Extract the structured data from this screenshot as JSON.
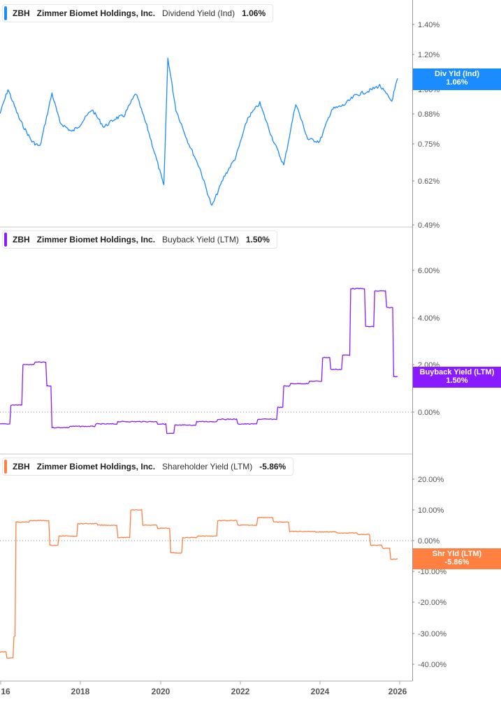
{
  "panels": [
    {
      "ticker": "ZBH",
      "company": "Zimmer Biomet Holdings, Inc.",
      "metric": "Dividend Yield (Ind)",
      "value": "1.06%",
      "color": "#1a8cff",
      "flag_label": "Div Yld (Ind)",
      "flag_value": "1.06%",
      "y_ticks": [
        "1.40%",
        "1.20%",
        "1.00%",
        "0.88%",
        "0.75%",
        "0.62%",
        "0.49%"
      ]
    },
    {
      "ticker": "ZBH",
      "company": "Zimmer Biomet Holdings, Inc.",
      "metric": "Buyback Yield (LTM)",
      "value": "1.50%",
      "color": "#8a1aff",
      "flag_label": "Buyback Yield (LTM)",
      "flag_value": "1.50%",
      "y_ticks": [
        "6.00%",
        "4.00%",
        "2.00%",
        "0.00%"
      ]
    },
    {
      "ticker": "ZBH",
      "company": "Zimmer Biomet Holdings, Inc.",
      "metric": "Shareholder Yield (LTM)",
      "value": "-5.86%",
      "color": "#ff8040",
      "flag_label": "Shr Yld (LTM)",
      "flag_value": "-5.86%",
      "y_ticks": [
        "20.00%",
        "10.00%",
        "0.00%",
        "-10.00%",
        "-20.00%",
        "-30.00%",
        "-40.00%"
      ]
    }
  ],
  "x_axis": {
    "labels": [
      "16",
      "2018",
      "2020",
      "2022",
      "2024",
      "2026"
    ]
  },
  "chart_data": [
    {
      "type": "line",
      "title": "ZBH Zimmer Biomet Holdings, Inc. Dividend Yield (Ind) 1.06%",
      "xlabel": "",
      "ylabel": "Dividend Yield (Ind)",
      "y_scale": "log",
      "ylim": [
        0.49,
        1.5
      ],
      "y_tick_labels": [
        "0.49%",
        "0.62%",
        "0.75%",
        "0.88%",
        "1.00%",
        "1.20%",
        "1.40%"
      ],
      "x": [
        2016.0,
        2016.2,
        2016.5,
        2016.8,
        2017.0,
        2017.3,
        2017.5,
        2017.8,
        2018.0,
        2018.3,
        2018.6,
        2018.9,
        2019.1,
        2019.4,
        2019.7,
        2020.0,
        2020.1,
        2020.2,
        2020.4,
        2020.7,
        2021.0,
        2021.3,
        2021.6,
        2021.9,
        2022.2,
        2022.5,
        2022.8,
        2023.1,
        2023.4,
        2023.7,
        2024.0,
        2024.3,
        2024.6,
        2024.9,
        2025.2,
        2025.5,
        2025.8,
        2025.95
      ],
      "series": [
        {
          "name": "Dividend Yield (Ind)",
          "values": [
            0.88,
            1.0,
            0.85,
            0.76,
            0.74,
            0.98,
            0.84,
            0.8,
            0.83,
            0.9,
            0.82,
            0.86,
            0.87,
            0.98,
            0.81,
            0.65,
            0.6,
            1.18,
            0.9,
            0.76,
            0.66,
            0.54,
            0.63,
            0.7,
            0.86,
            0.93,
            0.78,
            0.67,
            0.93,
            0.77,
            0.76,
            0.9,
            0.92,
            0.97,
            0.99,
            1.02,
            0.94,
            1.06
          ]
        }
      ]
    },
    {
      "type": "line",
      "title": "ZBH Zimmer Biomet Holdings, Inc. Buyback Yield (LTM) 1.50%",
      "xlabel": "",
      "ylabel": "Buyback Yield (LTM)",
      "ylim": [
        -1.0,
        7.0
      ],
      "y_tick_labels": [
        "0.00%",
        "2.00%",
        "4.00%",
        "6.00%"
      ],
      "x": [
        2016.0,
        2016.3,
        2016.6,
        2016.9,
        2017.2,
        2017.3,
        2017.8,
        2018.5,
        2019.0,
        2019.5,
        2020.0,
        2020.2,
        2020.4,
        2021.0,
        2021.5,
        2022.0,
        2022.5,
        2023.0,
        2023.1,
        2023.3,
        2023.8,
        2024.1,
        2024.3,
        2024.6,
        2024.8,
        2025.2,
        2025.4,
        2025.7,
        2025.85,
        2025.95
      ],
      "series": [
        {
          "name": "Buyback Yield (LTM)",
          "values": [
            -0.5,
            0.3,
            2.0,
            2.1,
            1.1,
            -0.65,
            -0.6,
            -0.5,
            -0.4,
            -0.4,
            -0.5,
            -0.9,
            -0.55,
            -0.4,
            -0.3,
            -0.5,
            -0.3,
            0.2,
            1.1,
            1.2,
            1.3,
            2.3,
            1.8,
            2.4,
            5.2,
            3.6,
            5.1,
            4.4,
            1.5,
            1.5
          ]
        }
      ]
    },
    {
      "type": "line",
      "title": "ZBH Zimmer Biomet Holdings, Inc. Shareholder Yield (LTM) -5.86%",
      "xlabel": "",
      "ylabel": "Shareholder Yield (LTM)",
      "ylim": [
        -45.0,
        25.0
      ],
      "y_tick_labels": [
        "-40.00%",
        "-30.00%",
        "-20.00%",
        "-10.00%",
        "0.00%",
        "10.00%",
        "20.00%"
      ],
      "x": [
        2016.0,
        2016.2,
        2016.35,
        2016.4,
        2016.8,
        2017.3,
        2017.5,
        2018.0,
        2018.5,
        2019.0,
        2019.3,
        2019.6,
        2020.0,
        2020.3,
        2020.6,
        2021.0,
        2021.5,
        2022.0,
        2022.5,
        2022.9,
        2023.3,
        2024.0,
        2024.5,
        2025.0,
        2025.3,
        2025.6,
        2025.8,
        2025.95
      ],
      "series": [
        {
          "name": "Shareholder Yield (LTM)",
          "values": [
            -36.0,
            -38.0,
            -31.0,
            6.0,
            6.5,
            -1.5,
            1.5,
            5.5,
            5.0,
            1.0,
            10.0,
            5.0,
            4.0,
            -4.0,
            1.0,
            1.5,
            6.5,
            5.0,
            7.5,
            6.0,
            3.0,
            2.8,
            2.5,
            2.0,
            -1.5,
            -2.5,
            -6.0,
            -5.86
          ]
        }
      ]
    }
  ]
}
